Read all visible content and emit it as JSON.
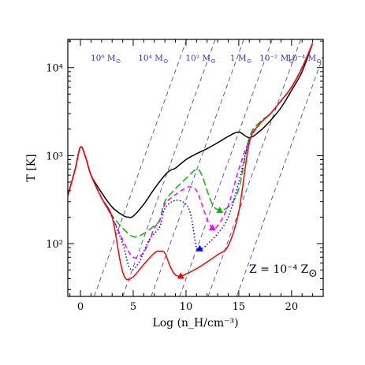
{
  "chart_data": {
    "type": "line",
    "xlabel": "Log (n_H/cm⁻³)",
    "ylabel": "T [K]",
    "xlim": [
      -1.2,
      23
    ],
    "ylim_log10": [
      1.4,
      4.32
    ],
    "log_y": true,
    "grid": false,
    "legend": "none",
    "x_ticks": [
      0,
      5,
      10,
      15,
      20
    ],
    "x_tick_labels": [
      "0",
      "5",
      "10",
      "15",
      "20"
    ],
    "y_ticks": [
      100,
      1000,
      10000
    ],
    "y_tick_labels": [
      "10²",
      "10³",
      "10⁴"
    ],
    "annotation": {
      "text": "Z = 10⁻⁴ Z",
      "sun_symbol": "⊙"
    },
    "jeans_mass_lines": {
      "color": "#3333cc",
      "style": "dashed",
      "slope_log10": 0.333,
      "lines": [
        {
          "label": "10⁶ M",
          "x_at_ymin": 1.3
        },
        {
          "label": "10⁴ M",
          "x_at_ymin": 4.0
        },
        {
          "label": "10² M",
          "x_at_ymin": 6.7
        },
        {
          "label": "1 M",
          "x_at_ymin": 9.4
        },
        {
          "label": "10⁻² M",
          "x_at_ymin": 12.1
        },
        {
          "label": "10⁻⁴ M",
          "x_at_ymin": 14.8
        }
      ],
      "label_positions_x": [
        2.4,
        6.9,
        11.4,
        15.2,
        18.6,
        21.2
      ]
    },
    "series": [
      {
        "color": "#000000",
        "style": "solid",
        "x": [
          -1.2,
          -0.5,
          0,
          0.5,
          1,
          2,
          3,
          4,
          4.5,
          5,
          6,
          7,
          8,
          8.5,
          9,
          10,
          11,
          12,
          13,
          14,
          15,
          16,
          17,
          18,
          19,
          20,
          21,
          22
        ],
        "y": [
          350,
          700,
          1250,
          950,
          600,
          380,
          260,
          210,
          200,
          205,
          280,
          420,
          600,
          680,
          720,
          900,
          1050,
          1200,
          1400,
          1650,
          1850,
          1600,
          1900,
          2500,
          3500,
          5500,
          9000,
          19000
        ]
      },
      {
        "color": "#00bb00",
        "style": "long-dash",
        "x": [
          -1.2,
          -0.5,
          0,
          0.5,
          1,
          2,
          3,
          4,
          5,
          6,
          7,
          7.5,
          8,
          9,
          10,
          11,
          11.5,
          12,
          12.5,
          13,
          14,
          15,
          16,
          17,
          18,
          19,
          20,
          21,
          22
        ],
        "y": [
          350,
          700,
          1250,
          950,
          600,
          330,
          210,
          150,
          120,
          130,
          160,
          185,
          300,
          420,
          550,
          700,
          600,
          400,
          280,
          245,
          260,
          420,
          1600,
          2400,
          3000,
          4200,
          6000,
          10000,
          19000
        ]
      },
      {
        "color": "#ff00ff",
        "style": "dash",
        "x": [
          -1.2,
          -0.5,
          0,
          0.5,
          1,
          2,
          3,
          4,
          5,
          6,
          7,
          7.5,
          8,
          9,
          10,
          10.5,
          11,
          11.5,
          12,
          12.5,
          13,
          14,
          15,
          16,
          17,
          18,
          19,
          20,
          21,
          22
        ],
        "y": [
          350,
          700,
          1250,
          950,
          600,
          330,
          200,
          110,
          70,
          80,
          150,
          180,
          280,
          360,
          430,
          440,
          400,
          280,
          190,
          150,
          160,
          270,
          700,
          1500,
          2300,
          3000,
          4200,
          6000,
          10000,
          19000
        ]
      },
      {
        "color": "#0000ff",
        "style": "dotted",
        "x": [
          -1.2,
          -0.5,
          0,
          0.5,
          1,
          2,
          3,
          4,
          4.7,
          5.5,
          6.5,
          7.5,
          8,
          9,
          10,
          10.5,
          11,
          11.5,
          12,
          13,
          14,
          15,
          16,
          17,
          18,
          19,
          20,
          21,
          22
        ],
        "y": [
          350,
          700,
          1250,
          950,
          600,
          330,
          200,
          100,
          52,
          60,
          110,
          155,
          250,
          310,
          280,
          200,
          90,
          88,
          98,
          130,
          200,
          500,
          1500,
          2300,
          3000,
          4200,
          6000,
          10000,
          19000
        ]
      },
      {
        "color": "#ff0000",
        "style": "solid",
        "x": [
          -1.2,
          -0.5,
          0,
          0.5,
          1,
          2,
          3,
          3.8,
          4.3,
          5,
          6,
          7,
          7.5,
          8,
          8.5,
          9,
          9.5,
          10,
          11,
          12,
          13,
          14,
          15,
          16,
          17,
          18,
          19,
          20,
          21,
          22
        ],
        "y": [
          350,
          700,
          1250,
          950,
          600,
          330,
          200,
          60,
          40,
          42,
          58,
          78,
          82,
          78,
          55,
          44,
          43,
          45,
          52,
          62,
          75,
          95,
          230,
          1400,
          2300,
          3000,
          4200,
          6000,
          10000,
          19000
        ]
      }
    ],
    "markers": [
      {
        "shape": "triangle",
        "color": "#00bb00",
        "x": 13.2,
        "y": 240
      },
      {
        "shape": "triangle",
        "color": "#ff00ff",
        "x": 12.5,
        "y": 152
      },
      {
        "shape": "triangle",
        "color": "#0000ff",
        "x": 11.3,
        "y": 88
      },
      {
        "shape": "triangle",
        "color": "#ff0000",
        "x": 9.5,
        "y": 43
      }
    ]
  }
}
